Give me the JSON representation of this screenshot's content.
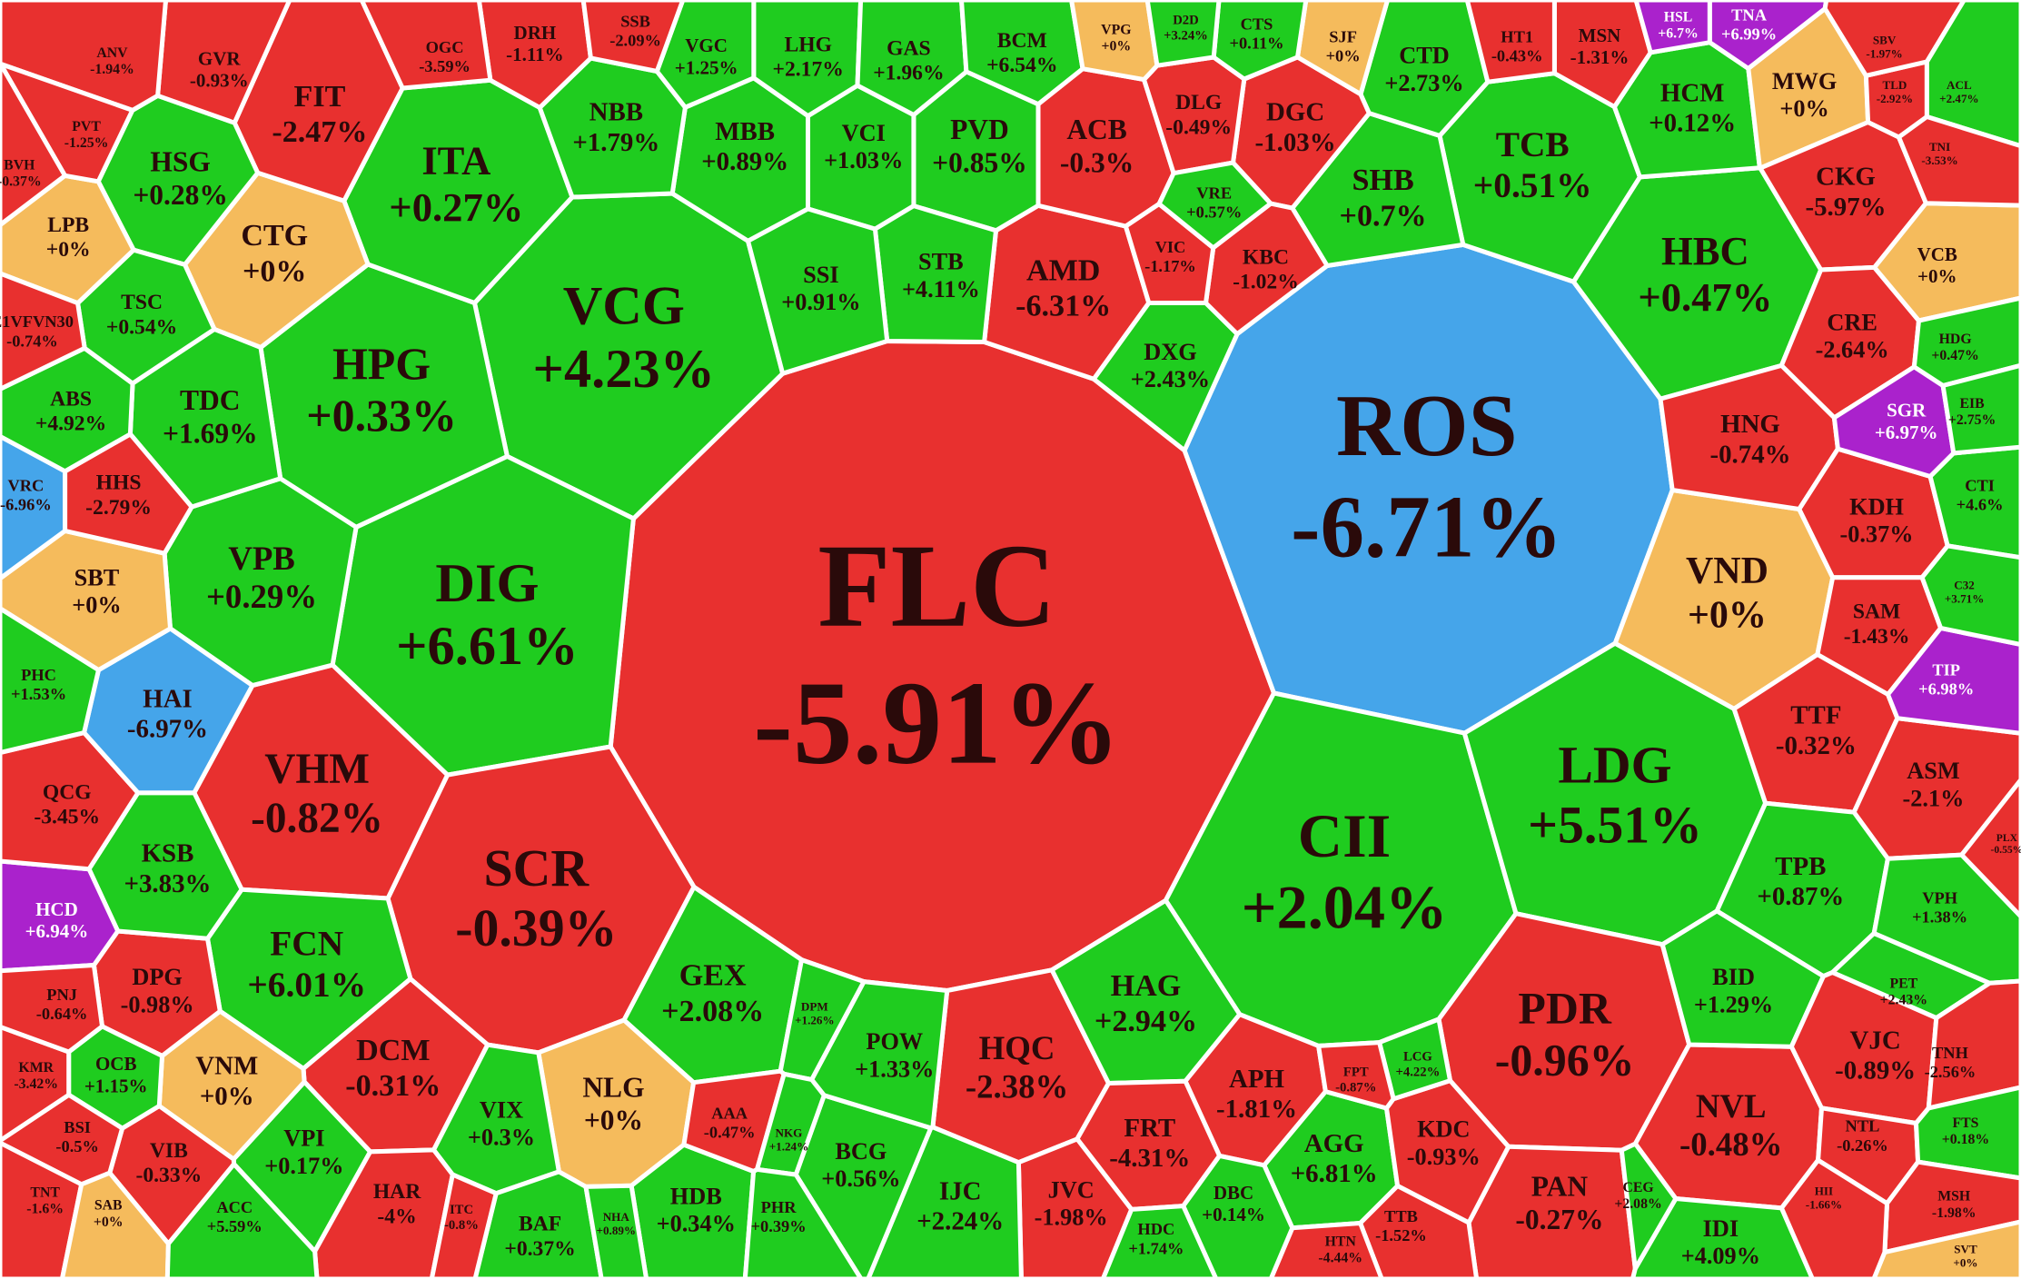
{
  "chart_data": {
    "type": "treemap",
    "categories": [
      "FLC",
      "ROS",
      "VCG",
      "DIG",
      "CII",
      "LDG",
      "SCR",
      "HPG",
      "VHM",
      "PDR",
      "ITA",
      "HBC",
      "TCB",
      "VND",
      "CTG",
      "FCN",
      "VPB",
      "HQC",
      "NVL",
      "SHB",
      "FIT",
      "HSG",
      "TDC",
      "HAG",
      "GEX",
      "DCM",
      "NLG",
      "AMD",
      "ACB",
      "PVD",
      "VCI",
      "MBB",
      "NBB",
      "STB",
      "SSI",
      "LHG",
      "GAS",
      "BCM",
      "VGC",
      "DGC",
      "DLG",
      "CTD",
      "HCM",
      "MWG",
      "CKG",
      "CRE",
      "HNG",
      "KDH",
      "SAM",
      "TTF",
      "ASM",
      "TPB",
      "BID",
      "VJC",
      "PAN",
      "IDI",
      "APH",
      "AGG",
      "KDC",
      "FRT",
      "JVC",
      "IJC",
      "BCG",
      "POW",
      "HDB",
      "VPI",
      "VIX",
      "HAR",
      "BAF",
      "VNM",
      "VIB",
      "DPG",
      "OCB",
      "KSB",
      "HCD",
      "QCG",
      "HAI",
      "SBT",
      "VRC",
      "HHS",
      "ABS",
      "TSC",
      "LPB",
      "PHC",
      "BSI",
      "KMR",
      "PNJ",
      "TNT",
      "SAB",
      "ACC",
      "DXG",
      "KBC",
      "VIC",
      "VRE",
      "SJF",
      "MSN",
      "HT1",
      "CTS",
      "VPG",
      "D2D",
      "DRH",
      "OGC",
      "SSB",
      "GVR",
      "ANV",
      "PVT",
      "BVH",
      "E1VFVN30",
      "VCB",
      "SGR",
      "TIP",
      "HSL",
      "TNA",
      "CTI",
      "HDG",
      "EIB",
      "C32",
      "PET",
      "VPH",
      "TNH",
      "NTL",
      "FTS",
      "MSH",
      "SVT",
      "CEG",
      "LCG",
      "FPT",
      "TTB",
      "HTN",
      "DBC",
      "HDC",
      "DPM",
      "AAA",
      "NKG",
      "PHR",
      "NHA",
      "ITC",
      "HII",
      "PLX",
      "TLD",
      "SBV",
      "ACL",
      "TNI"
    ],
    "values": [
      -5.91,
      -6.71,
      4.23,
      6.61,
      2.04,
      5.51,
      -0.39,
      0.33,
      -0.82,
      -0.96,
      0.27,
      0.47,
      0.51,
      0,
      0,
      6.01,
      0.29,
      -2.38,
      -0.48,
      0.7,
      -2.47,
      0.28,
      1.69,
      2.94,
      2.08,
      -0.31,
      0,
      -6.31,
      -0.3,
      0.85,
      1.03,
      0.89,
      1.79,
      4.11,
      0.91,
      2.17,
      1.96,
      6.54,
      1.25,
      -1.03,
      -0.49,
      2.73,
      0.12,
      0,
      -5.97,
      -2.64,
      -0.74,
      -0.37,
      -1.43,
      -0.32,
      -2.1,
      0.87,
      1.29,
      -0.89,
      -0.27,
      4.09,
      -1.81,
      6.81,
      -0.93,
      -4.31,
      -1.98,
      2.24,
      0.56,
      1.33,
      0.34,
      0.17,
      0.3,
      -4,
      0.37,
      0,
      -0.33,
      -0.98,
      1.15,
      3.83,
      6.94,
      -3.45,
      -6.97,
      0,
      -6.96,
      -2.79,
      4.92,
      0.54,
      0,
      1.53,
      -0.5,
      -3.42,
      -0.64,
      -1.6,
      0,
      5.59,
      2.43,
      -1.02,
      -1.17,
      0.57,
      0,
      -1.31,
      -0.43,
      0.11,
      0,
      3.24,
      -1.11,
      -3.59,
      -2.09,
      -0.93,
      -1.94,
      -1.25,
      -0.37,
      -0.74,
      0,
      6.97,
      6.98,
      6.7,
      6.99,
      4.6,
      0.47,
      2.75,
      3.71,
      2.43,
      1.38,
      -2.56,
      -0.26,
      0.18,
      -1.98,
      0,
      2.08,
      4.22,
      -0.87,
      -1.52,
      -4.44,
      0.14,
      1.74,
      1.26,
      -0.47,
      1.24,
      0.39,
      0.89,
      -0.8,
      -1.66,
      -0.55,
      -2.92,
      -1.97,
      2.47,
      -3.53
    ],
    "value_labels": [
      "-5.91%",
      "-6.71%",
      "+4.23%",
      "+6.61%",
      "+2.04%",
      "+5.51%",
      "-0.39%",
      "+0.33%",
      "-0.82%",
      "-0.96%",
      "+0.27%",
      "+0.47%",
      "+0.51%",
      "+0%",
      "+0%",
      "+6.01%",
      "+0.29%",
      "-2.38%",
      "-0.48%",
      "+0.7%",
      "-2.47%",
      "+0.28%",
      "+1.69%",
      "+2.94%",
      "+2.08%",
      "-0.31%",
      "+0%",
      "-6.31%",
      "-0.3%",
      "+0.85%",
      "+1.03%",
      "+0.89%",
      "+1.79%",
      "+4.11%",
      "+0.91%",
      "+2.17%",
      "+1.96%",
      "+6.54%",
      "+1.25%",
      "-1.03%",
      "-0.49%",
      "+2.73%",
      "+0.12%",
      "+0%",
      "-5.97%",
      "-2.64%",
      "-0.74%",
      "-0.37%",
      "-1.43%",
      "-0.32%",
      "-2.1%",
      "+0.87%",
      "+1.29%",
      "-0.89%",
      "-0.27%",
      "+4.09%",
      "-1.81%",
      "+6.81%",
      "-0.93%",
      "-4.31%",
      "-1.98%",
      "+2.24%",
      "+0.56%",
      "+1.33%",
      "+0.34%",
      "+0.17%",
      "+0.3%",
      "-4%",
      "+0.37%",
      "+0%",
      "-0.33%",
      "-0.98%",
      "+1.15%",
      "+3.83%",
      "+6.94%",
      "-3.45%",
      "-6.97%",
      "+0%",
      "-6.96%",
      "-2.79%",
      "+4.92%",
      "+0.54%",
      "+0%",
      "+1.53%",
      "-0.5%",
      "-3.42%",
      "-0.64%",
      "-1.6%",
      "+0%",
      "+5.59%",
      "+2.43%",
      "-1.02%",
      "-1.17%",
      "+0.57%",
      "+0%",
      "-1.31%",
      "-0.43%",
      "+0.11%",
      "+0%",
      "+3.24%",
      "-1.11%",
      "-3.59%",
      "-2.09%",
      "-0.93%",
      "-1.94%",
      "-1.25%",
      "-0.37%",
      "-0.74%",
      "+0%",
      "+6.97%",
      "+6.98%",
      "+6.7%",
      "+6.99%",
      "+4.6%",
      "+0.47%",
      "+2.75%",
      "+3.71%",
      "+2.43%",
      "+1.38%",
      "-2.56%",
      "-0.26%",
      "+0.18%",
      "-1.98%",
      "+0%",
      "+2.08%",
      "+4.22%",
      "-0.87%",
      "-1.52%",
      "-4.44%",
      "+0.14%",
      "+1.74%",
      "+1.26%",
      "-0.47%",
      "+1.24%",
      "+0.39%",
      "+0.89%",
      "-0.8%",
      "-1.66%",
      "-0.55%",
      "-2.92%",
      "-1.97%",
      "+2.47%",
      "-3.53%"
    ],
    "colors": [
      "#e8302f",
      "#45a5ea",
      "#1fcc1f",
      "#1fcc1f",
      "#1fcc1f",
      "#1fcc1f",
      "#e8302f",
      "#1fcc1f",
      "#e8302f",
      "#e8302f",
      "#1fcc1f",
      "#1fcc1f",
      "#1fcc1f",
      "#f5bb5c",
      "#f5bb5c",
      "#1fcc1f",
      "#1fcc1f",
      "#e8302f",
      "#e8302f",
      "#1fcc1f",
      "#e8302f",
      "#1fcc1f",
      "#1fcc1f",
      "#1fcc1f",
      "#1fcc1f",
      "#e8302f",
      "#f5bb5c",
      "#e8302f",
      "#e8302f",
      "#1fcc1f",
      "#1fcc1f",
      "#1fcc1f",
      "#1fcc1f",
      "#1fcc1f",
      "#1fcc1f",
      "#1fcc1f",
      "#1fcc1f",
      "#1fcc1f",
      "#1fcc1f",
      "#e8302f",
      "#e8302f",
      "#1fcc1f",
      "#1fcc1f",
      "#f5bb5c",
      "#e8302f",
      "#e8302f",
      "#e8302f",
      "#e8302f",
      "#e8302f",
      "#e8302f",
      "#e8302f",
      "#1fcc1f",
      "#1fcc1f",
      "#e8302f",
      "#e8302f",
      "#1fcc1f",
      "#e8302f",
      "#1fcc1f",
      "#e8302f",
      "#e8302f",
      "#e8302f",
      "#1fcc1f",
      "#1fcc1f",
      "#1fcc1f",
      "#1fcc1f",
      "#1fcc1f",
      "#1fcc1f",
      "#e8302f",
      "#1fcc1f",
      "#f5bb5c",
      "#e8302f",
      "#e8302f",
      "#1fcc1f",
      "#1fcc1f",
      "#aa22cc",
      "#e8302f",
      "#45a5ea",
      "#f5bb5c",
      "#45a5ea",
      "#e8302f",
      "#1fcc1f",
      "#1fcc1f",
      "#f5bb5c",
      "#1fcc1f",
      "#e8302f",
      "#e8302f",
      "#e8302f",
      "#e8302f",
      "#f5bb5c",
      "#1fcc1f",
      "#1fcc1f",
      "#e8302f",
      "#e8302f",
      "#1fcc1f",
      "#f5bb5c",
      "#e8302f",
      "#e8302f",
      "#1fcc1f",
      "#f5bb5c",
      "#1fcc1f",
      "#e8302f",
      "#e8302f",
      "#e8302f",
      "#e8302f",
      "#e8302f",
      "#e8302f",
      "#e8302f",
      "#e8302f",
      "#f5bb5c",
      "#aa22cc",
      "#aa22cc",
      "#aa22cc",
      "#aa22cc",
      "#1fcc1f",
      "#1fcc1f",
      "#1fcc1f",
      "#1fcc1f",
      "#1fcc1f",
      "#1fcc1f",
      "#e8302f",
      "#e8302f",
      "#1fcc1f",
      "#e8302f",
      "#f5bb5c",
      "#1fcc1f",
      "#1fcc1f",
      "#e8302f",
      "#e8302f",
      "#e8302f",
      "#1fcc1f",
      "#1fcc1f",
      "#1fcc1f",
      "#e8302f",
      "#1fcc1f",
      "#1fcc1f",
      "#1fcc1f",
      "#e8302f",
      "#e8302f",
      "#e8302f",
      "#e8302f",
      "#e8302f",
      "#1fcc1f",
      "#e8302f"
    ]
  }
}
